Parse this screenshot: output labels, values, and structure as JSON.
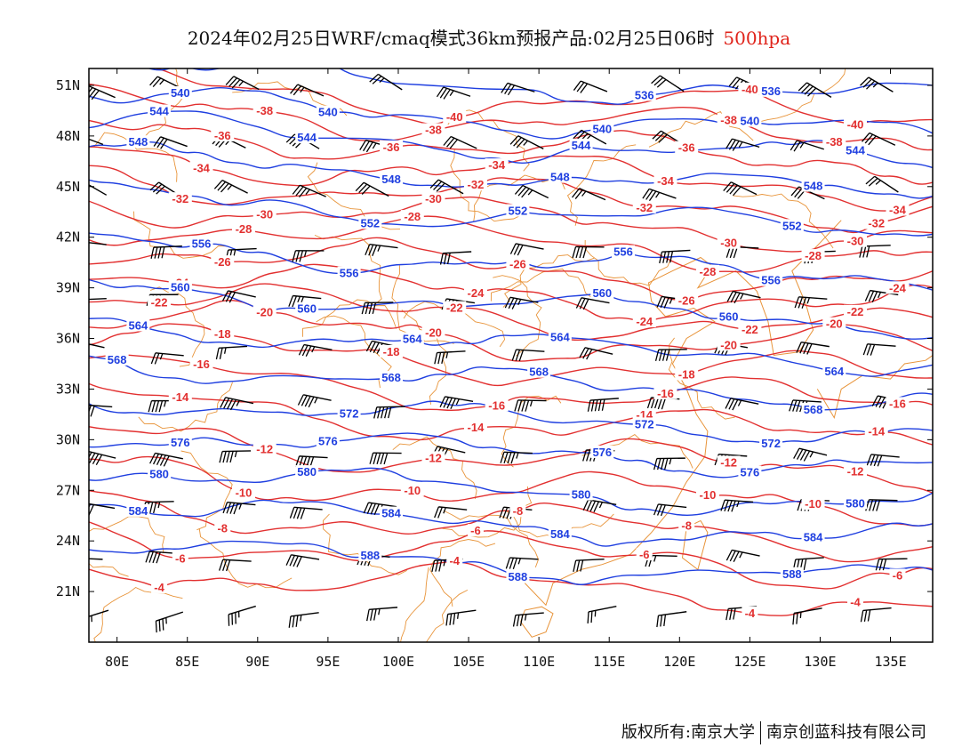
{
  "title": {
    "text": "2024年02月25日WRF/cmaq模式36km预报产品:02月25日06时",
    "level": "500hpa",
    "level_color": "#e0241b"
  },
  "map": {
    "lon_range": [
      78,
      138
    ],
    "lat_range": [
      18,
      52
    ],
    "lon_ticks": [
      "80E",
      "85E",
      "90E",
      "95E",
      "100E",
      "105E",
      "110E",
      "115E",
      "120E",
      "125E",
      "130E",
      "135E"
    ],
    "lat_ticks": [
      "51N",
      "48N",
      "45N",
      "42N",
      "39N",
      "36N",
      "33N",
      "30N",
      "27N",
      "24N",
      "21N"
    ],
    "colors": {
      "height": "#1f3fe0",
      "temperature": "#e23030",
      "boundary": "#e8943a",
      "wind": "#000000"
    },
    "height_contours": [
      {
        "label": "536",
        "lat": 51.3
      },
      {
        "label": "540",
        "lat": 49.3
      },
      {
        "label": "544",
        "lat": 47.7
      },
      {
        "label": "548",
        "lat": 45.8
      },
      {
        "label": "552",
        "lat": 43.5
      },
      {
        "label": "556",
        "lat": 40.7
      },
      {
        "label": "560",
        "lat": 38.1
      },
      {
        "label": "564",
        "lat": 35.8
      },
      {
        "label": "568",
        "lat": 33.6
      },
      {
        "label": "572",
        "lat": 31.4
      },
      {
        "label": "576",
        "lat": 29.5
      },
      {
        "label": "580",
        "lat": 27.2
      },
      {
        "label": "584",
        "lat": 25.2
      },
      {
        "label": "588",
        "lat": 22.8
      }
    ],
    "temperature_contours": [
      {
        "label": "-40",
        "lat": 50.2
      },
      {
        "label": "-38",
        "lat": 49.0
      },
      {
        "label": "-36",
        "lat": 47.5
      },
      {
        "label": "-34",
        "lat": 46.0
      },
      {
        "label": "-32",
        "lat": 44.6
      },
      {
        "label": "-30",
        "lat": 43.3
      },
      {
        "label": "-28",
        "lat": 41.9
      },
      {
        "label": "-26",
        "lat": 40.4
      },
      {
        "label": "-24",
        "lat": 38.9
      },
      {
        "label": "-22",
        "lat": 37.6
      },
      {
        "label": "-20",
        "lat": 36.3
      },
      {
        "label": "-18",
        "lat": 34.8
      },
      {
        "label": "-16",
        "lat": 33.1
      },
      {
        "label": "-14",
        "lat": 31.2
      },
      {
        "label": "-12",
        "lat": 29.2
      },
      {
        "label": "-10",
        "lat": 27.2
      },
      {
        "label": "-8",
        "lat": 25.2
      },
      {
        "label": "-6",
        "lat": 23.4
      },
      {
        "label": "-4",
        "lat": 21.6
      }
    ]
  },
  "footer": {
    "left": "版权所有:南京大学",
    "right": "南京创蓝科技有限公司"
  }
}
